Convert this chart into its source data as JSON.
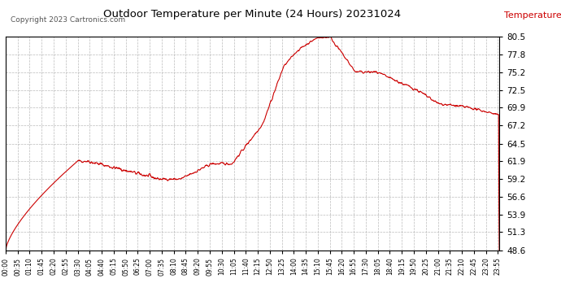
{
  "title": "Outdoor Temperature per Minute (24 Hours) 20231024",
  "ylabel": "Temperature  (°F)",
  "copyright": "Copyright 2023 Cartronics.com",
  "line_color": "#cc0000",
  "background_color": "#ffffff",
  "grid_color": "#aaaaaa",
  "ylabel_color": "#cc0000",
  "title_color": "#000000",
  "ylim": [
    48.6,
    80.5
  ],
  "yticks": [
    48.6,
    51.3,
    53.9,
    56.6,
    59.2,
    61.9,
    64.5,
    67.2,
    69.9,
    72.5,
    75.2,
    77.8,
    80.5
  ],
  "x_tick_interval": 35,
  "total_minutes": 1440
}
